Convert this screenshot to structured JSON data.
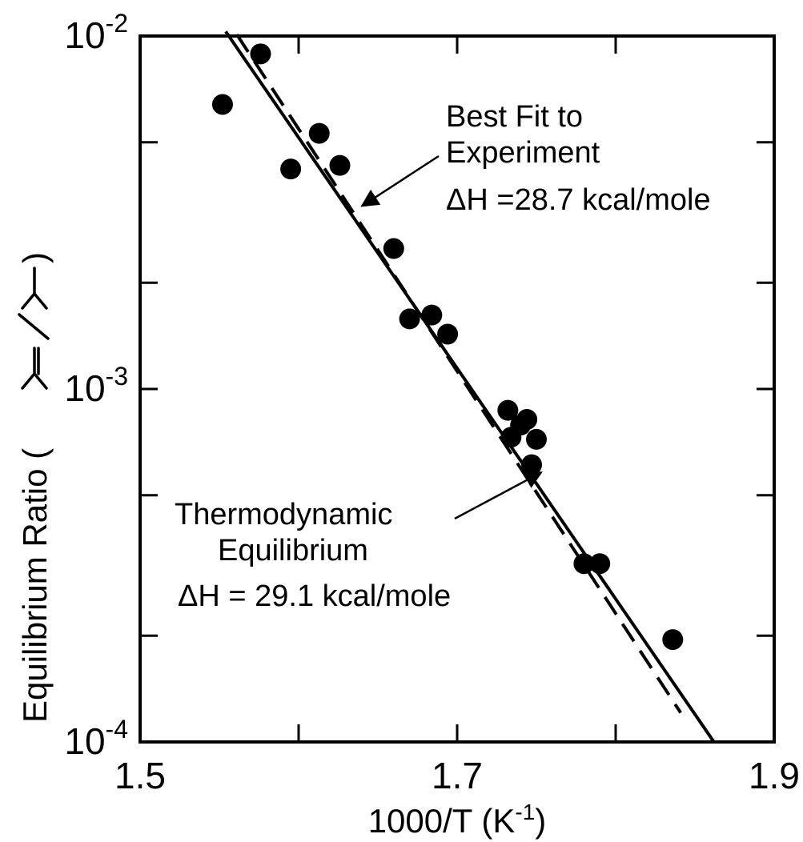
{
  "chart_data": {
    "type": "scatter",
    "title": "",
    "xlabel": "1000/T (K",
    "xlabel_sup": "-1",
    "xlabel_close": ")",
    "ylabel": "Equilibrium Ratio (",
    "ylabel_close": ")",
    "ylabel_molecules": "isobutene / isobutane skeletal structures",
    "xlim": [
      1.5,
      1.9
    ],
    "ylim": [
      0.0001,
      0.01
    ],
    "yscale": "log",
    "grid": false,
    "x_ticks": [
      {
        "value": 1.5,
        "label": "1.5"
      },
      {
        "value": 1.7,
        "label": "1.7"
      },
      {
        "value": 1.9,
        "label": "1.9"
      }
    ],
    "y_ticks": [
      {
        "value": 0.0001,
        "base": "10",
        "exp": "-4"
      },
      {
        "value": 0.001,
        "base": "10",
        "exp": "-3"
      },
      {
        "value": 0.01,
        "base": "10",
        "exp": "-2"
      }
    ],
    "series": [
      {
        "style": "points",
        "x": [
          1.552,
          1.576,
          1.595,
          1.613,
          1.626,
          1.66,
          1.67,
          1.684,
          1.694,
          1.732,
          1.734,
          1.74,
          1.744,
          1.75,
          1.747,
          1.78,
          1.79,
          1.836
        ],
        "y": [
          0.0064,
          0.0089,
          0.0042,
          0.0053,
          0.0043,
          0.0025,
          0.00158,
          0.00162,
          0.00143,
          0.00087,
          0.00073,
          0.00079,
          0.00082,
          0.00072,
          0.00061,
          0.00032,
          0.00032,
          0.000195
        ]
      },
      {
        "style": "dashed",
        "x": [
          1.561,
          1.841
        ],
        "y": [
          0.0101,
          0.000121
        ]
      },
      {
        "style": "solid",
        "x": [
          1.554,
          1.862
        ],
        "y": [
          0.0103,
          0.0001
        ]
      }
    ],
    "annotations": [
      {
        "lines": [
          "Best Fit to",
          "Experiment",
          "ΔH =28.7 kcal/mole"
        ],
        "arrow_to": {
          "x": 1.64,
          "y": 0.0033
        }
      },
      {
        "lines": [
          "Thermodynamic",
          "Equilibrium",
          "ΔH = 29.1 kcal/mole"
        ],
        "arrow_to": {
          "x": 1.753,
          "y": 0.00058
        }
      }
    ]
  }
}
